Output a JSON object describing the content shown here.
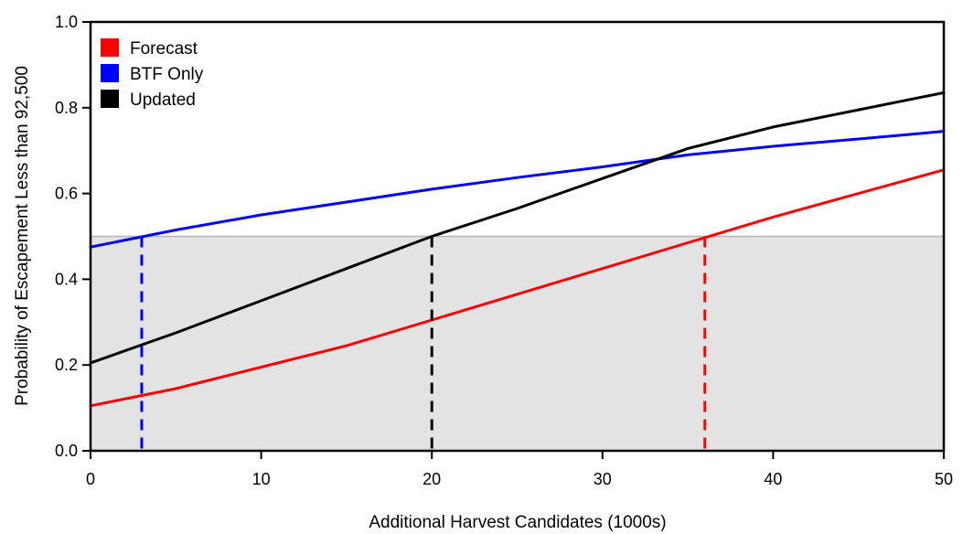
{
  "chart_data": {
    "type": "line",
    "title": "",
    "xlabel": "Additional Harvest Candidates (1000s)",
    "ylabel": "Probability of Escapement Less than 92,500",
    "xlim": [
      0,
      50
    ],
    "ylim": [
      0,
      1.0
    ],
    "x_ticks": [
      0,
      10,
      20,
      30,
      40,
      50
    ],
    "x_tick_labels": [
      "0",
      "10",
      "20",
      "30",
      "40",
      "50"
    ],
    "y_ticks": [
      0,
      0.2,
      0.4,
      0.6,
      0.8,
      1.0
    ],
    "y_tick_labels": [
      "0.0",
      "0.2",
      "0.4",
      "0.6",
      "0.8",
      "1.0"
    ],
    "shaded_region": {
      "y_from": 0,
      "y_to": 0.5,
      "color": "#e3e3e3"
    },
    "legend_position": "top-left",
    "series": [
      {
        "name": "Forecast",
        "color": "#ff0000",
        "x": [
          0,
          5,
          10,
          15,
          20,
          25,
          30,
          35,
          40,
          45,
          50
        ],
        "y": [
          0.105,
          0.145,
          0.195,
          0.245,
          0.305,
          0.365,
          0.425,
          0.485,
          0.545,
          0.6,
          0.655
        ]
      },
      {
        "name": "BTF Only",
        "color": "#0000ff",
        "x": [
          0,
          5,
          10,
          15,
          20,
          25,
          30,
          35,
          40,
          45,
          50
        ],
        "y": [
          0.475,
          0.515,
          0.55,
          0.58,
          0.61,
          0.637,
          0.662,
          0.69,
          0.71,
          0.727,
          0.745
        ]
      },
      {
        "name": "Updated",
        "color": "#000000",
        "x": [
          0,
          5,
          10,
          15,
          20,
          25,
          30,
          35,
          40,
          45,
          50
        ],
        "y": [
          0.205,
          0.275,
          0.35,
          0.425,
          0.5,
          0.565,
          0.635,
          0.705,
          0.755,
          0.795,
          0.835
        ]
      }
    ],
    "vertical_markers": [
      {
        "series": "BTF Only",
        "color": "#0000ff",
        "x": 3,
        "y": 0.5
      },
      {
        "series": "Updated",
        "color": "#000000",
        "x": 20,
        "y": 0.5
      },
      {
        "series": "Forecast",
        "color": "#ff0000",
        "x": 36,
        "y": 0.5
      }
    ]
  }
}
